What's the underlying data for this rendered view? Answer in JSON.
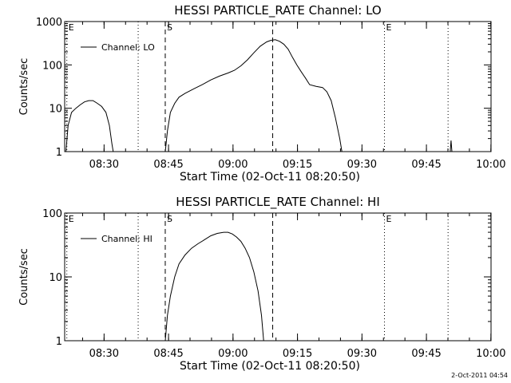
{
  "chart_data": [
    {
      "type": "line",
      "title": "HESSI PARTICLE_RATE Channel: LO",
      "xlabel": "Start Time (02-Oct-11 08:20:50)",
      "ylabel": "Counts/sec",
      "yscale": "log",
      "ylim": [
        1,
        1000
      ],
      "ytick_labels": [
        "1",
        "10",
        "100",
        "1000"
      ],
      "xtick_labels": [
        "08:30",
        "08:45",
        "09:00",
        "09:15",
        "09:30",
        "09:45",
        "10:00"
      ],
      "x_unit": "minutes after 08:20:50",
      "xlim": [
        0,
        99.2
      ],
      "legend": {
        "label": "Channel: LO",
        "position": "top-left"
      },
      "markers": [
        {
          "label": "E",
          "x": 0.5,
          "style": "dotted"
        },
        {
          "label": "",
          "x": 17.1,
          "style": "dotted"
        },
        {
          "label": "S",
          "x": 23.4,
          "style": "dashed"
        },
        {
          "label": "",
          "x": 48.4,
          "style": "dashed"
        },
        {
          "label": "E",
          "x": 74.4,
          "style": "dotted"
        },
        {
          "label": "",
          "x": 89.2,
          "style": "dotted"
        }
      ],
      "series": [
        {
          "name": "Channel: LO",
          "segments": [
            [
              [
                0.3,
                1
              ],
              [
                0.8,
                4
              ],
              [
                1.6,
                8
              ],
              [
                2.6,
                10
              ],
              [
                3.6,
                12
              ],
              [
                4.6,
                14
              ],
              [
                5.6,
                15
              ],
              [
                6.6,
                15
              ],
              [
                7.6,
                13
              ],
              [
                8.6,
                11
              ],
              [
                9.6,
                8
              ],
              [
                10.4,
                4
              ],
              [
                11.0,
                1.5
              ],
              [
                11.3,
                1
              ]
            ],
            [
              [
                23.4,
                1
              ],
              [
                23.9,
                3
              ],
              [
                24.6,
                8
              ],
              [
                25.6,
                13
              ],
              [
                26.6,
                18
              ],
              [
                28,
                22
              ],
              [
                30,
                28
              ],
              [
                32,
                35
              ],
              [
                34,
                45
              ],
              [
                36,
                55
              ],
              [
                38,
                65
              ],
              [
                39.5,
                75
              ],
              [
                41,
                95
              ],
              [
                42.5,
                130
              ],
              [
                44,
                190
              ],
              [
                45.5,
                270
              ],
              [
                47,
                340
              ],
              [
                48,
                370
              ],
              [
                49,
                380
              ],
              [
                50,
                350
              ],
              [
                51,
                300
              ],
              [
                52,
                230
              ],
              [
                53,
                150
              ],
              [
                54,
                100
              ],
              [
                55,
                70
              ],
              [
                56,
                50
              ],
              [
                57,
                35
              ],
              [
                58.5,
                32
              ],
              [
                60,
                30
              ],
              [
                61,
                24
              ],
              [
                62,
                15
              ],
              [
                63,
                6
              ],
              [
                64,
                2
              ],
              [
                64.5,
                1
              ]
            ],
            [
              [
                89.7,
                1
              ],
              [
                89.9,
                1.8
              ],
              [
                90.1,
                1
              ]
            ]
          ]
        }
      ]
    },
    {
      "type": "line",
      "title": "HESSI PARTICLE_RATE Channel: HI",
      "xlabel": "Start Time (02-Oct-11 08:20:50)",
      "ylabel": "Counts/sec",
      "yscale": "log",
      "ylim": [
        1,
        100
      ],
      "ytick_labels": [
        "1",
        "10",
        "100"
      ],
      "xtick_labels": [
        "08:30",
        "08:45",
        "09:00",
        "09:15",
        "09:30",
        "09:45",
        "10:00"
      ],
      "x_unit": "minutes after 08:20:50",
      "xlim": [
        0,
        99.2
      ],
      "legend": {
        "label": "Channel: HI",
        "position": "top-left"
      },
      "markers": [
        {
          "label": "E",
          "x": 0.5,
          "style": "dotted"
        },
        {
          "label": "",
          "x": 17.1,
          "style": "dotted"
        },
        {
          "label": "S",
          "x": 23.4,
          "style": "dashed"
        },
        {
          "label": "",
          "x": 48.4,
          "style": "dashed"
        },
        {
          "label": "E",
          "x": 74.4,
          "style": "dotted"
        },
        {
          "label": "",
          "x": 89.2,
          "style": "dotted"
        }
      ],
      "series": [
        {
          "name": "Channel: HI",
          "segments": [
            [
              [
                23.4,
                1
              ],
              [
                23.9,
                2.5
              ],
              [
                24.6,
                5
              ],
              [
                25.6,
                10
              ],
              [
                26.6,
                16
              ],
              [
                28,
                22
              ],
              [
                29.5,
                28
              ],
              [
                31,
                33
              ],
              [
                32.5,
                38
              ],
              [
                34,
                44
              ],
              [
                35.5,
                48
              ],
              [
                37,
                50
              ],
              [
                38,
                50
              ],
              [
                39,
                47
              ],
              [
                40,
                42
              ],
              [
                41,
                36
              ],
              [
                42,
                28
              ],
              [
                43,
                20
              ],
              [
                44,
                12
              ],
              [
                45,
                6
              ],
              [
                45.8,
                2.5
              ],
              [
                46.3,
                1
              ]
            ]
          ]
        }
      ]
    }
  ],
  "footer_stamp": "2-Oct-2011 04:54"
}
